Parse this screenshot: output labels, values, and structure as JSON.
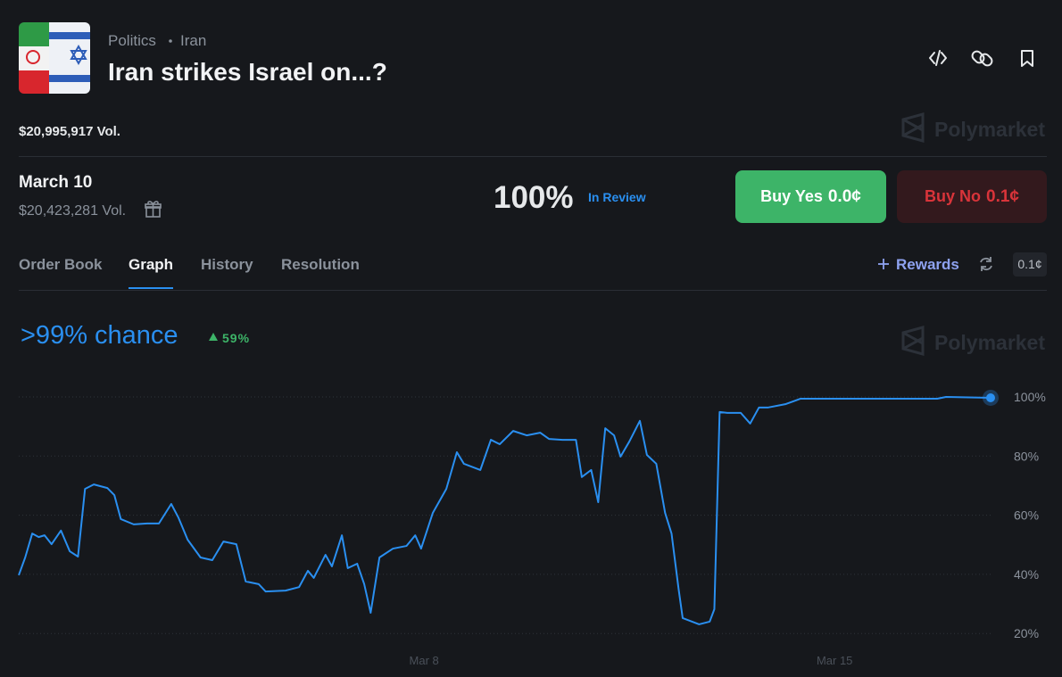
{
  "header": {
    "breadcrumb": [
      "Politics",
      "Iran"
    ],
    "title": "Iran strikes Israel on...?",
    "volume": "$20,995,917 Vol."
  },
  "watermark": "Polymarket",
  "market": {
    "name": "March 10",
    "volume": "$20,423,281 Vol.",
    "probability": "100%",
    "status": "In Review",
    "buy_yes": {
      "label": "Buy Yes",
      "price": "0.0¢"
    },
    "buy_no": {
      "label": "Buy No",
      "price": "0.1¢"
    }
  },
  "tabs": [
    "Order Book",
    "Graph",
    "History",
    "Resolution"
  ],
  "active_tab": 1,
  "rewards": "Rewards",
  "spread": "0.1¢",
  "chance": {
    "label": ">99% chance",
    "change": "59%"
  },
  "chart_data": {
    "type": "line",
    "color": "#2a8ff0",
    "x": [
      1.09,
      1.2,
      1.32,
      1.43,
      1.53,
      1.65,
      1.81,
      1.96,
      2.1,
      2.22,
      2.37,
      2.6,
      2.72,
      2.83,
      3.05,
      3.28,
      3.48,
      3.69,
      3.81,
      3.97,
      4.19,
      4.39,
      4.58,
      4.8,
      4.96,
      5.18,
      5.3,
      5.64,
      5.87,
      6.02,
      6.12,
      6.32,
      6.43,
      6.6,
      6.7,
      6.86,
      6.98,
      7.09,
      7.24,
      7.47,
      7.7,
      7.85,
      7.95,
      8.15,
      8.38,
      8.56,
      8.68,
      8.96,
      9.14,
      9.29,
      9.52,
      9.75,
      9.98,
      10.13,
      10.36,
      10.59,
      10.69,
      10.85,
      10.97,
      11.09,
      11.24,
      11.35,
      11.5,
      11.68,
      11.8,
      11.96,
      12.11,
      12.22,
      12.34,
      12.41,
      12.69,
      12.87,
      12.95,
      13.04,
      13.17,
      13.4,
      13.56,
      13.71,
      13.86,
      14.17,
      14.42,
      15.23,
      16.75,
      16.9,
      17.66
    ],
    "values": [
      39.7,
      45.7,
      53.8,
      52.6,
      53.2,
      50.2,
      54.8,
      47.8,
      46.0,
      68.9,
      70.4,
      69.2,
      66.8,
      58.7,
      56.9,
      57.2,
      57.2,
      63.8,
      59.3,
      51.7,
      45.7,
      44.8,
      51.1,
      50.2,
      37.6,
      36.7,
      34.2,
      34.5,
      35.7,
      41.2,
      38.8,
      46.6,
      42.7,
      53.2,
      42.1,
      43.6,
      36.7,
      27.0,
      45.7,
      48.7,
      49.6,
      53.2,
      48.7,
      60.8,
      68.9,
      81.3,
      77.4,
      75.3,
      85.5,
      84.0,
      88.5,
      87.0,
      87.9,
      85.8,
      85.5,
      85.5,
      72.9,
      75.3,
      64.4,
      89.4,
      87.0,
      79.8,
      84.9,
      91.9,
      80.4,
      77.4,
      60.8,
      53.8,
      35.1,
      25.2,
      23.1,
      24.0,
      28.2,
      94.9,
      94.6,
      94.6,
      91.0,
      96.4,
      96.4,
      97.6,
      99.4,
      99.4,
      99.4,
      100,
      99.7
    ],
    "xlim": [
      1.09,
      17.66
    ],
    "xticks": [
      {
        "value": 8,
        "label": "Mar 8"
      },
      {
        "value": 15,
        "label": "Mar 15"
      }
    ],
    "ylim": [
      15,
      106
    ],
    "yticks": [
      {
        "value": 20,
        "label": "20%"
      },
      {
        "value": 40,
        "label": "40%"
      },
      {
        "value": 60,
        "label": "60%"
      },
      {
        "value": 80,
        "label": "80%"
      },
      {
        "value": 100,
        "label": "100%"
      }
    ],
    "grid": true
  }
}
